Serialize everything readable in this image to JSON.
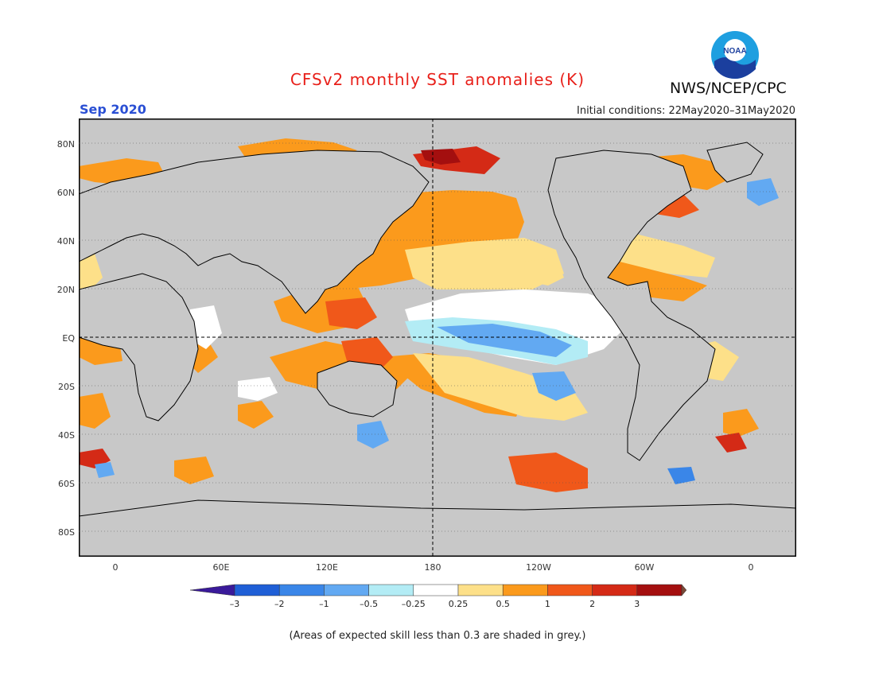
{
  "title": "CFSv2 monthly SST anomalies (K)",
  "agency": "NWS/NCEP/CPC",
  "logo_text": "NOAA",
  "month": "Sep 2020",
  "initial_conditions": "Initial conditions: 22May2020–31May2020",
  "lat_labels": [
    "80N",
    "60N",
    "40N",
    "20N",
    "EQ",
    "20S",
    "40S",
    "60S",
    "80S"
  ],
  "lon_labels": [
    "0",
    "60E",
    "120E",
    "180",
    "120W",
    "60W",
    "0"
  ],
  "colorbar": {
    "ticks": [
      "–3",
      "–2",
      "–1",
      "–0.5",
      "–0.25",
      "0.25",
      "0.5",
      "1",
      "2",
      "3"
    ],
    "colors": [
      "#3a1a9a",
      "#1f5fd6",
      "#3a86e8",
      "#62a9f2",
      "#b3ecf5",
      "#ffffff",
      "#fde089",
      "#fb9a1c",
      "#f0581a",
      "#d42a16",
      "#a40f0f",
      "#7a4a38"
    ]
  },
  "footnote": "(Areas of expected skill less than 0.3 are shaded in grey.)",
  "colors": {
    "no_skill": "#c8c8c8",
    "coast": "#000000",
    "title": "#e8201a",
    "month": "#2a4fd4"
  }
}
